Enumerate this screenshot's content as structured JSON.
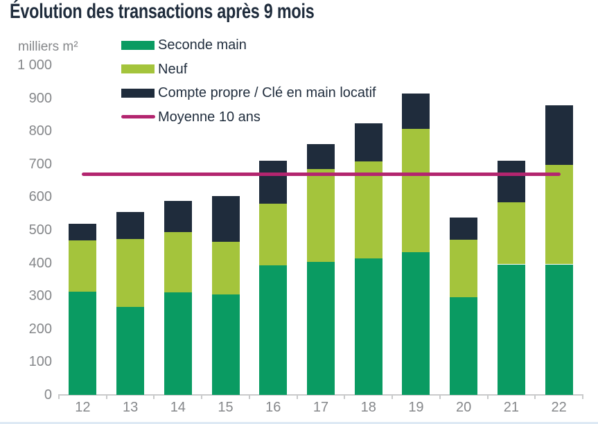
{
  "page": {
    "background": "#ffffff",
    "bottom_strip_color": "#dde9f4"
  },
  "chart_data": {
    "type": "bar",
    "stacked": true,
    "title": "Évolution des transactions après 9 mois",
    "title_color": "#1f2c3c",
    "unit_label": "milliers m²",
    "categories": [
      "12",
      "13",
      "14",
      "15",
      "16",
      "17",
      "18",
      "19",
      "20",
      "21",
      "22"
    ],
    "series": [
      {
        "name": "Seconde main",
        "color": "#0a9b62",
        "values": [
          313,
          266,
          310,
          305,
          392,
          403,
          413,
          433,
          296,
          396,
          396
        ]
      },
      {
        "name": "Neuf",
        "color": "#a4c43c",
        "values": [
          156,
          206,
          184,
          160,
          188,
          281,
          296,
          374,
          175,
          187,
          301
        ]
      },
      {
        "name": "Compte propre / Clé en main locatif",
        "color": "#1f2c3c",
        "values": [
          49,
          83,
          94,
          137,
          130,
          77,
          115,
          107,
          66,
          128,
          181
        ]
      }
    ],
    "totals": [
      518,
      555,
      588,
      602,
      710,
      761,
      824,
      914,
      537,
      711,
      878
    ],
    "average_line": {
      "label": "Moyenne 10 ans",
      "color": "#b3256f",
      "value": 670
    },
    "ylim": [
      0,
      1000
    ],
    "ytick_step": 100,
    "y_ticks": [
      {
        "label": "1 000",
        "value": 1000
      },
      {
        "label": "900",
        "value": 900
      },
      {
        "label": "800",
        "value": 800
      },
      {
        "label": "700",
        "value": 700
      },
      {
        "label": "600",
        "value": 600
      },
      {
        "label": "500",
        "value": 500
      },
      {
        "label": "400",
        "value": 400
      },
      {
        "label": "300",
        "value": 300
      },
      {
        "label": "200",
        "value": 200
      },
      {
        "label": "100",
        "value": 100
      },
      {
        "label": "0",
        "value": 0
      }
    ],
    "grid": false,
    "legend_position": "top-center",
    "axis_color": "#c9cacb",
    "tick_label_color": "#85878a"
  }
}
